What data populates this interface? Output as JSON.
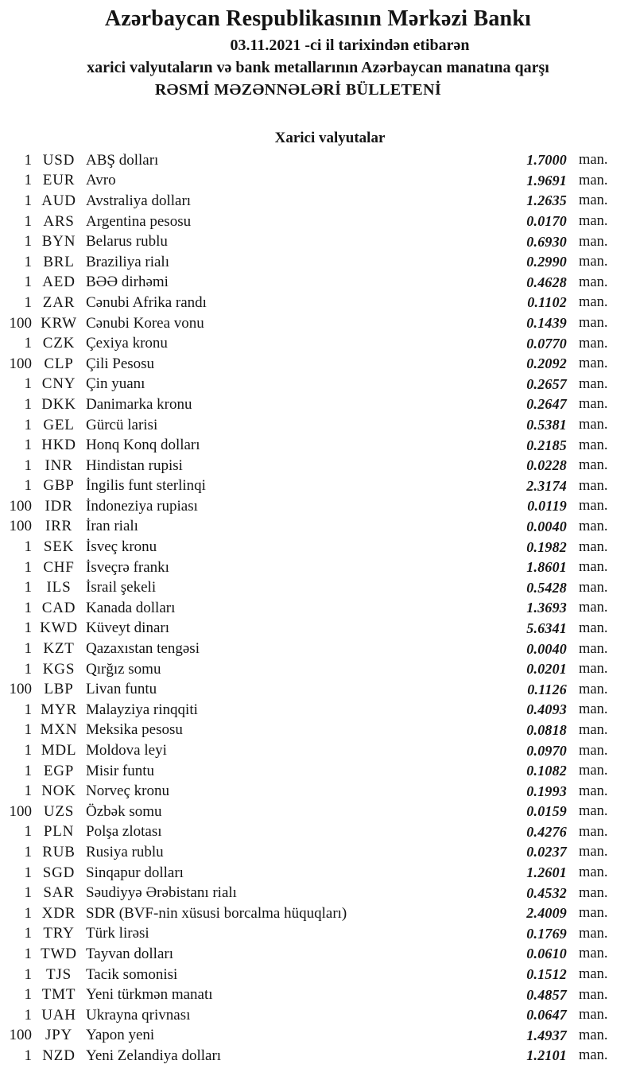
{
  "header": {
    "title": "Azərbaycan Respublikasının Mərkəzi Bankı",
    "date_line": "03.11.2021 -ci il tarixindən etibarən",
    "subtitle": "xarici valyutaların və bank metallarının Azərbaycan manatına qarşı",
    "bulletin_title": "RƏSMİ MƏZƏNNƏLƏRİ BÜLLETENİ"
  },
  "section": {
    "title": "Xarici valyutalar"
  },
  "unit_label": "man.",
  "rates": [
    {
      "qty": "1",
      "code": "USD",
      "name": "ABŞ dolları",
      "rate": "1.7000"
    },
    {
      "qty": "1",
      "code": "EUR",
      "name": "Avro",
      "rate": "1.9691"
    },
    {
      "qty": "1",
      "code": "AUD",
      "name": "Avstraliya dolları",
      "rate": "1.2635"
    },
    {
      "qty": "1",
      "code": "ARS",
      "name": "Argentina pesosu",
      "rate": "0.0170"
    },
    {
      "qty": "1",
      "code": "BYN",
      "name": "Belarus rublu",
      "rate": "0.6930"
    },
    {
      "qty": "1",
      "code": "BRL",
      "name": "Braziliya rialı",
      "rate": "0.2990"
    },
    {
      "qty": "1",
      "code": "AED",
      "name": "BƏƏ dirhəmi",
      "rate": "0.4628"
    },
    {
      "qty": "1",
      "code": "ZAR",
      "name": "Cənubi Afrika randı",
      "rate": "0.1102"
    },
    {
      "qty": "100",
      "code": "KRW",
      "name": "Cənubi Korea vonu",
      "rate": "0.1439"
    },
    {
      "qty": "1",
      "code": "CZK",
      "name": "Çexiya kronu",
      "rate": "0.0770"
    },
    {
      "qty": "100",
      "code": "CLP",
      "name": "Çili Pesosu",
      "rate": "0.2092"
    },
    {
      "qty": "1",
      "code": "CNY",
      "name": "Çin yuanı",
      "rate": "0.2657"
    },
    {
      "qty": "1",
      "code": "DKK",
      "name": "Danimarka kronu",
      "rate": "0.2647"
    },
    {
      "qty": "1",
      "code": "GEL",
      "name": "Gürcü larisi",
      "rate": "0.5381"
    },
    {
      "qty": "1",
      "code": "HKD",
      "name": "Honq Konq dolları",
      "rate": "0.2185"
    },
    {
      "qty": "1",
      "code": "INR",
      "name": "Hindistan rupisi",
      "rate": "0.0228"
    },
    {
      "qty": "1",
      "code": "GBP",
      "name": "İngilis funt sterlinqi",
      "rate": "2.3174"
    },
    {
      "qty": "100",
      "code": "IDR",
      "name": "İndoneziya rupiası",
      "rate": "0.0119"
    },
    {
      "qty": "100",
      "code": "IRR",
      "name": "İran rialı",
      "rate": "0.0040"
    },
    {
      "qty": "1",
      "code": "SEK",
      "name": "İsveç kronu",
      "rate": "0.1982"
    },
    {
      "qty": "1",
      "code": "CHF",
      "name": "İsveçrə frankı",
      "rate": "1.8601"
    },
    {
      "qty": "1",
      "code": "ILS",
      "name": "İsrail şekeli",
      "rate": "0.5428"
    },
    {
      "qty": "1",
      "code": "CAD",
      "name": "Kanada dolları",
      "rate": "1.3693"
    },
    {
      "qty": "1",
      "code": "KWD",
      "name": "Küveyt dinarı",
      "rate": "5.6341"
    },
    {
      "qty": "1",
      "code": "KZT",
      "name": "Qazaxıstan tengəsi",
      "rate": "0.0040"
    },
    {
      "qty": "1",
      "code": "KGS",
      "name": "Qırğız somu",
      "rate": "0.0201"
    },
    {
      "qty": "100",
      "code": "LBP",
      "name": "Livan funtu",
      "rate": "0.1126"
    },
    {
      "qty": "1",
      "code": "MYR",
      "name": "Malayziya rinqqiti",
      "rate": "0.4093"
    },
    {
      "qty": "1",
      "code": "MXN",
      "name": "Meksika pesosu",
      "rate": "0.0818"
    },
    {
      "qty": "1",
      "code": "MDL",
      "name": "Moldova leyi",
      "rate": "0.0970"
    },
    {
      "qty": "1",
      "code": "EGP",
      "name": "Misir funtu",
      "rate": "0.1082"
    },
    {
      "qty": "1",
      "code": "NOK",
      "name": "Norveç kronu",
      "rate": "0.1993"
    },
    {
      "qty": "100",
      "code": "UZS",
      "name": "Özbək somu",
      "rate": "0.0159"
    },
    {
      "qty": "1",
      "code": "PLN",
      "name": "Polşa zlotası",
      "rate": "0.4276"
    },
    {
      "qty": "1",
      "code": "RUB",
      "name": "Rusiya rublu",
      "rate": "0.0237"
    },
    {
      "qty": "1",
      "code": "SGD",
      "name": "Sinqapur dolları",
      "rate": "1.2601"
    },
    {
      "qty": "1",
      "code": "SAR",
      "name": "Səudiyyə Ərəbistanı rialı",
      "rate": "0.4532"
    },
    {
      "qty": "1",
      "code": "XDR",
      "name": "SDR (BVF-nin xüsusi borcalma hüquqları)",
      "rate": "2.4009"
    },
    {
      "qty": "1",
      "code": "TRY",
      "name": "Türk lirəsi",
      "rate": "0.1769"
    },
    {
      "qty": "1",
      "code": "TWD",
      "name": "Tayvan dolları",
      "rate": "0.0610"
    },
    {
      "qty": "1",
      "code": "TJS",
      "name": "Tacik somonisi",
      "rate": "0.1512"
    },
    {
      "qty": "1",
      "code": "TMT",
      "name": "Yeni türkmən manatı",
      "rate": "0.4857"
    },
    {
      "qty": "1",
      "code": "UAH",
      "name": "Ukrayna qrivnası",
      "rate": "0.0647"
    },
    {
      "qty": "100",
      "code": "JPY",
      "name": "Yapon yeni",
      "rate": "1.4937"
    },
    {
      "qty": "1",
      "code": "NZD",
      "name": "Yeni Zelandiya dolları",
      "rate": "1.2101"
    }
  ]
}
